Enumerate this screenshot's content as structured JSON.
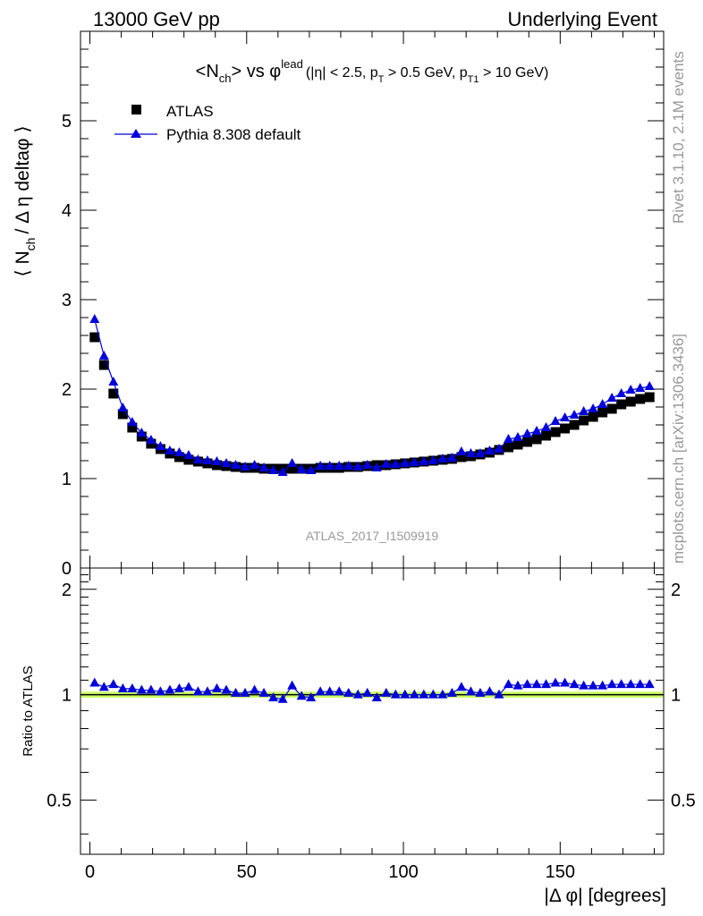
{
  "header": {
    "left": "13000 GeV pp",
    "right": "Underlying Event"
  },
  "side_labels": {
    "rivet": "Rivet 3.1.10,  2.1M events",
    "mcplots": "mcplots.cern.ch [arXiv:1306.3436]"
  },
  "watermark": "ATLAS_2017_I1509919",
  "colors": {
    "pythia": "#0000dd",
    "atlas": "#000000",
    "band": "#ccff66"
  },
  "chart_data": [
    {
      "type": "scatter",
      "title": "<N_ch> vs φ^lead (|η| < 2.5, p_T > 0.5 GeV, p_T1 > 10 GeV)",
      "title_parts": {
        "main": "<N",
        "main_sub": "ch",
        "main_rest": "> vs φ",
        "sup": "lead",
        "cut1": "(|η| < 2.5, p",
        "cut1_sub": "T",
        "cut2": " > 0.5 GeV, p",
        "cut2_sub": "T1",
        "cut3": " > 10 GeV)"
      },
      "ylabel": "⟨ N_ch / Δ η deltaφ ⟩",
      "ylabel_parts": {
        "a": "⟨ N",
        "sub": "ch",
        "b": "/ Δ η deltaφ ⟩"
      },
      "xlim": [
        -3,
        183
      ],
      "ylim": [
        0,
        6
      ],
      "yticks": [
        0,
        1,
        2,
        3,
        4,
        5
      ],
      "yticklabels": [
        "0",
        "1",
        "2",
        "3",
        "4",
        "5"
      ],
      "legend_position": "top-left",
      "series": [
        {
          "name": "ATLAS",
          "marker": "square",
          "x": [
            1.5,
            4.5,
            7.5,
            10.5,
            13.5,
            16.5,
            19.5,
            22.5,
            25.5,
            28.5,
            31.5,
            34.5,
            37.5,
            40.5,
            43.5,
            46.5,
            49.5,
            52.5,
            55.5,
            58.5,
            61.5,
            64.5,
            67.5,
            70.5,
            73.5,
            76.5,
            79.5,
            82.5,
            85.5,
            88.5,
            91.5,
            94.5,
            97.5,
            100.5,
            103.5,
            106.5,
            109.5,
            112.5,
            115.5,
            118.5,
            121.5,
            124.5,
            127.5,
            130.5,
            133.5,
            136.5,
            139.5,
            142.5,
            145.5,
            148.5,
            151.5,
            154.5,
            157.5,
            160.5,
            163.5,
            166.5,
            169.5,
            172.5,
            175.5,
            178.5
          ],
          "y": [
            2.58,
            2.27,
            1.95,
            1.72,
            1.57,
            1.47,
            1.39,
            1.33,
            1.28,
            1.24,
            1.21,
            1.19,
            1.17,
            1.15,
            1.14,
            1.13,
            1.12,
            1.12,
            1.11,
            1.11,
            1.11,
            1.11,
            1.11,
            1.11,
            1.12,
            1.12,
            1.12,
            1.13,
            1.13,
            1.14,
            1.15,
            1.15,
            1.16,
            1.17,
            1.18,
            1.19,
            1.2,
            1.21,
            1.22,
            1.24,
            1.25,
            1.27,
            1.29,
            1.32,
            1.35,
            1.38,
            1.41,
            1.44,
            1.48,
            1.52,
            1.56,
            1.6,
            1.65,
            1.69,
            1.74,
            1.78,
            1.83,
            1.86,
            1.89,
            1.91
          ]
        },
        {
          "name": "Pythia 8.308 default",
          "marker": "triangle",
          "x": [
            1.5,
            4.5,
            7.5,
            10.5,
            13.5,
            16.5,
            19.5,
            22.5,
            25.5,
            28.5,
            31.5,
            34.5,
            37.5,
            40.5,
            43.5,
            46.5,
            49.5,
            52.5,
            55.5,
            58.5,
            61.5,
            64.5,
            67.5,
            70.5,
            73.5,
            76.5,
            79.5,
            82.5,
            85.5,
            88.5,
            91.5,
            94.5,
            97.5,
            100.5,
            103.5,
            106.5,
            109.5,
            112.5,
            115.5,
            118.5,
            121.5,
            124.5,
            127.5,
            130.5,
            133.5,
            136.5,
            139.5,
            142.5,
            145.5,
            148.5,
            151.5,
            154.5,
            157.5,
            160.5,
            163.5,
            166.5,
            169.5,
            172.5,
            175.5,
            178.5
          ],
          "y": [
            2.78,
            2.37,
            2.08,
            1.79,
            1.63,
            1.51,
            1.43,
            1.36,
            1.31,
            1.29,
            1.26,
            1.21,
            1.2,
            1.19,
            1.17,
            1.15,
            1.13,
            1.15,
            1.12,
            1.09,
            1.07,
            1.17,
            1.1,
            1.09,
            1.14,
            1.14,
            1.14,
            1.14,
            1.13,
            1.15,
            1.12,
            1.16,
            1.16,
            1.17,
            1.18,
            1.19,
            1.2,
            1.22,
            1.23,
            1.3,
            1.28,
            1.28,
            1.31,
            1.33,
            1.44,
            1.46,
            1.5,
            1.53,
            1.57,
            1.64,
            1.68,
            1.71,
            1.75,
            1.78,
            1.83,
            1.9,
            1.95,
            1.99,
            2.01,
            2.03
          ]
        }
      ]
    },
    {
      "type": "scatter",
      "xlabel": "|Δ φ| [degrees]",
      "ylabel": "Ratio to ATLAS",
      "xlim": [
        -3,
        183
      ],
      "ylim": [
        0.35,
        2.3
      ],
      "xticks": [
        0,
        50,
        100,
        150
      ],
      "xticklabels": [
        "0",
        "50",
        "100",
        "150"
      ],
      "yticks": [
        0.5,
        1,
        2
      ],
      "yticklabels": [
        "0.5",
        "1",
        "2"
      ],
      "reference_line": 1,
      "series": [
        {
          "name": "Pythia 8.308 default",
          "marker": "triangle",
          "x": [
            1.5,
            4.5,
            7.5,
            10.5,
            13.5,
            16.5,
            19.5,
            22.5,
            25.5,
            28.5,
            31.5,
            34.5,
            37.5,
            40.5,
            43.5,
            46.5,
            49.5,
            52.5,
            55.5,
            58.5,
            61.5,
            64.5,
            67.5,
            70.5,
            73.5,
            76.5,
            79.5,
            82.5,
            85.5,
            88.5,
            91.5,
            94.5,
            97.5,
            100.5,
            103.5,
            106.5,
            109.5,
            112.5,
            115.5,
            118.5,
            121.5,
            124.5,
            127.5,
            130.5,
            133.5,
            136.5,
            139.5,
            142.5,
            145.5,
            148.5,
            151.5,
            154.5,
            157.5,
            160.5,
            163.5,
            166.5,
            169.5,
            172.5,
            175.5,
            178.5
          ],
          "y": [
            1.08,
            1.05,
            1.07,
            1.04,
            1.04,
            1.03,
            1.03,
            1.02,
            1.03,
            1.04,
            1.05,
            1.02,
            1.02,
            1.04,
            1.03,
            1.01,
            1.01,
            1.03,
            1.01,
            0.98,
            0.97,
            1.06,
            0.99,
            0.98,
            1.02,
            1.02,
            1.02,
            1.01,
            1.0,
            1.01,
            0.98,
            1.01,
            1.0,
            1.0,
            1.0,
            1.0,
            1.0,
            1.0,
            1.01,
            1.05,
            1.02,
            1.01,
            1.02,
            1.0,
            1.07,
            1.06,
            1.07,
            1.07,
            1.07,
            1.08,
            1.08,
            1.07,
            1.06,
            1.06,
            1.06,
            1.07,
            1.07,
            1.07,
            1.07,
            1.07
          ]
        }
      ]
    }
  ]
}
